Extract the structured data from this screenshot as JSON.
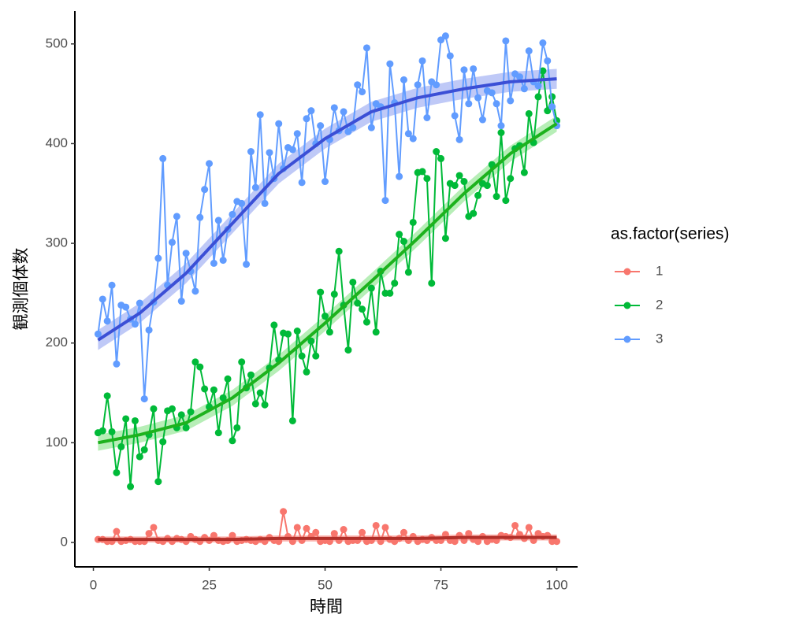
{
  "chart_data": {
    "type": "line",
    "xlabel": "時間",
    "ylabel": "観測個体数",
    "legend_title": "as.factor(series)",
    "legend": "right",
    "grid": false,
    "xlim": [
      -4,
      104.5
    ],
    "ylim": [
      -24.5,
      533
    ],
    "xticks": [
      0,
      25,
      50,
      75,
      100
    ],
    "yticks": [
      0,
      100,
      200,
      300,
      400,
      500
    ],
    "x": [
      1,
      2,
      3,
      4,
      5,
      6,
      7,
      8,
      9,
      10,
      11,
      12,
      13,
      14,
      15,
      16,
      17,
      18,
      19,
      20,
      21,
      22,
      23,
      24,
      25,
      26,
      27,
      28,
      29,
      30,
      31,
      32,
      33,
      34,
      35,
      36,
      37,
      38,
      39,
      40,
      41,
      42,
      43,
      44,
      45,
      46,
      47,
      48,
      49,
      50,
      51,
      52,
      53,
      54,
      55,
      56,
      57,
      58,
      59,
      60,
      61,
      62,
      63,
      64,
      65,
      66,
      67,
      68,
      69,
      70,
      71,
      72,
      73,
      74,
      75,
      76,
      77,
      78,
      79,
      80,
      81,
      82,
      83,
      84,
      85,
      86,
      87,
      88,
      89,
      90,
      91,
      92,
      93,
      94,
      95,
      96,
      97,
      98,
      99,
      100
    ],
    "series": [
      {
        "name": "1",
        "color": "#F8766D",
        "values": [
          3,
          3,
          1,
          1,
          11,
          1,
          2,
          3,
          1,
          1,
          1,
          9,
          15,
          2,
          1,
          4,
          1,
          4,
          3,
          1,
          6,
          3,
          1,
          5,
          2,
          7,
          2,
          1,
          2,
          7,
          1,
          2,
          3,
          2,
          1,
          3,
          1,
          5,
          2,
          1,
          31,
          6,
          1,
          15,
          2,
          14,
          6,
          10,
          1,
          2,
          1,
          9,
          2,
          13,
          1,
          2,
          2,
          10,
          1,
          2,
          17,
          1,
          15,
          3,
          1,
          4,
          10,
          2,
          6,
          1,
          3,
          2,
          5,
          2,
          2,
          8,
          2,
          1,
          7,
          2,
          9,
          3,
          1,
          6,
          1,
          3,
          2,
          7,
          6,
          5,
          17,
          8,
          4,
          15,
          2,
          9,
          6,
          7,
          1,
          1
        ]
      },
      {
        "name": "2",
        "color": "#00BA38",
        "values": [
          110,
          112,
          147,
          111,
          70,
          96,
          124,
          56,
          122,
          86,
          93,
          108,
          134,
          61,
          101,
          132,
          134,
          115,
          128,
          115,
          131,
          181,
          176,
          154,
          136,
          153,
          110,
          145,
          164,
          102,
          115,
          181,
          155,
          168,
          139,
          150,
          138,
          175,
          218,
          183,
          210,
          209,
          122,
          212,
          187,
          171,
          202,
          187,
          251,
          227,
          211,
          249,
          292,
          238,
          193,
          261,
          240,
          234,
          221,
          255,
          211,
          272,
          250,
          250,
          260,
          309,
          302,
          271,
          321,
          371,
          372,
          365,
          260,
          392,
          385,
          305,
          360,
          358,
          368,
          362,
          327,
          330,
          348,
          360,
          358,
          379,
          347,
          411,
          343,
          365,
          395,
          398,
          371,
          430,
          401,
          447,
          473,
          433,
          447,
          423
        ]
      },
      {
        "name": "3",
        "color": "#619CFF",
        "values": [
          209,
          244,
          222,
          258,
          179,
          238,
          236,
          224,
          219,
          240,
          144,
          213,
          241,
          285,
          385,
          258,
          301,
          327,
          242,
          290,
          272,
          252,
          326,
          354,
          380,
          280,
          323,
          283,
          314,
          329,
          342,
          340,
          279,
          392,
          356,
          429,
          340,
          391,
          365,
          420,
          375,
          396,
          394,
          410,
          361,
          425,
          433,
          400,
          418,
          362,
          404,
          436,
          413,
          432,
          412,
          416,
          459,
          452,
          496,
          416,
          440,
          437,
          343,
          480,
          441,
          367,
          464,
          410,
          405,
          459,
          483,
          426,
          462,
          459,
          504,
          508,
          488,
          428,
          404,
          474,
          440,
          475,
          446,
          424,
          453,
          451,
          440,
          418,
          503,
          443,
          470,
          467,
          455,
          493,
          462,
          458,
          501,
          483,
          437,
          418
        ]
      }
    ],
    "trend_x": [
      1,
      10,
      20,
      30,
      40,
      50,
      60,
      70,
      80,
      90,
      100
    ],
    "trends": [
      {
        "color": "#B2302A",
        "band_color": "#F8766D",
        "values": [
          3,
          3,
          3,
          3,
          4,
          4,
          4,
          4,
          5,
          5,
          5
        ],
        "band": 3
      },
      {
        "color": "#1DB21D",
        "band_color": "#7CE07C",
        "values": [
          100,
          108,
          120,
          145,
          180,
          220,
          262,
          305,
          350,
          390,
          420
        ],
        "band": 8
      },
      {
        "color": "#3B4FD6",
        "band_color": "#8A9CF0",
        "values": [
          203,
          230,
          270,
          320,
          370,
          405,
          432,
          446,
          455,
          462,
          465
        ],
        "band": 10
      }
    ]
  }
}
